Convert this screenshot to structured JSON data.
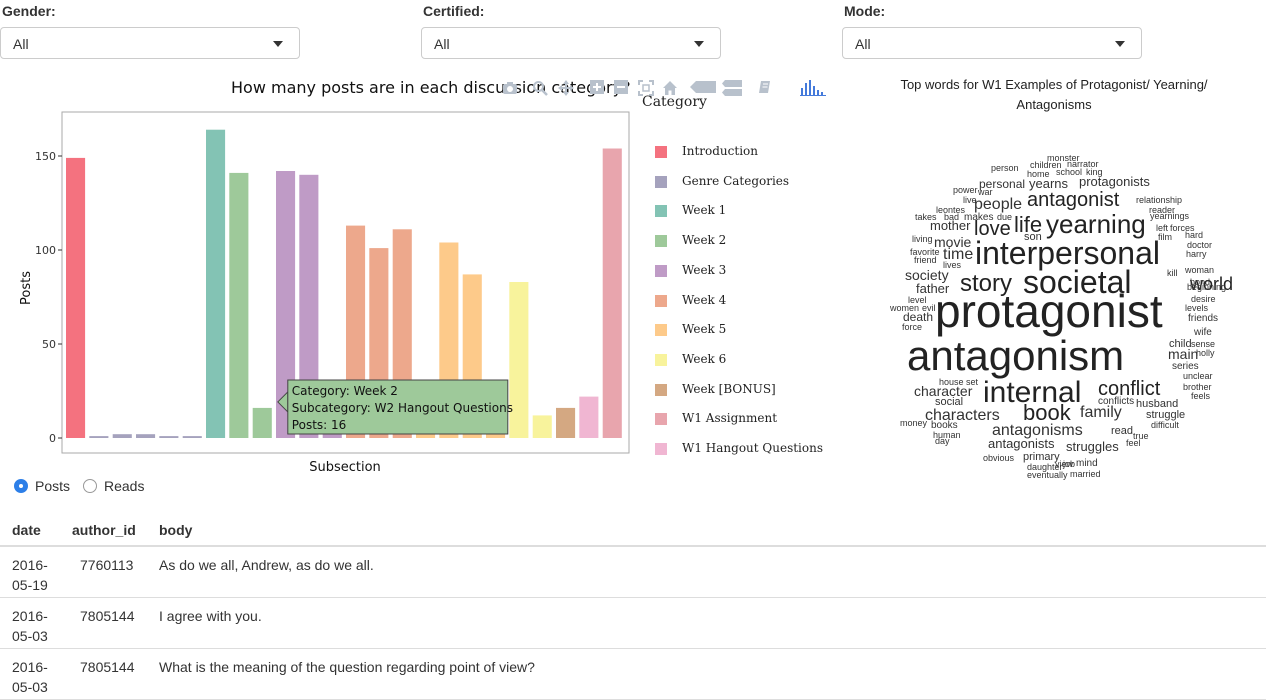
{
  "filters": [
    {
      "label": "Gender:",
      "value": "All"
    },
    {
      "label": "Certified:",
      "value": "All"
    },
    {
      "label": "Mode:",
      "value": "All"
    }
  ],
  "chart": {
    "title": "How many posts are in each discussion category?",
    "xlabel": "Subsection",
    "ylabel": "Posts"
  },
  "chart_data": {
    "type": "bar",
    "title": "How many posts are in each discussion category?",
    "xlabel": "Subsection",
    "ylabel": "Posts",
    "ylim": [
      0,
      165
    ],
    "yticks": [
      0,
      50,
      100,
      150
    ],
    "grid": false,
    "legend_title": "Category",
    "legend_position": "right",
    "categories": [
      "Introduction",
      "Genre Categories",
      "Week 1",
      "Week 2",
      "Week 3",
      "Week 4",
      "Week 5",
      "Week 6",
      "Week [BONUS]",
      "W1 Assignment",
      "W1 Hangout Questions"
    ],
    "colors": [
      "#f4727f",
      "#a5a2bd",
      "#83c3b4",
      "#9ec99a",
      "#bf9bc6",
      "#eda88c",
      "#fdca8a",
      "#f8f39c",
      "#d4a882",
      "#e8a5ad",
      "#f0b6d2"
    ],
    "bars": [
      {
        "category": "Introduction",
        "value": 149
      },
      {
        "category": "Genre Categories",
        "value": 1
      },
      {
        "category": "Genre Categories",
        "value": 2
      },
      {
        "category": "Genre Categories",
        "value": 2
      },
      {
        "category": "Genre Categories",
        "value": 1
      },
      {
        "category": "Genre Categories",
        "value": 1
      },
      {
        "category": "Week 1",
        "value": 164
      },
      {
        "category": "Week 2",
        "value": 141
      },
      {
        "category": "Week 2",
        "value": 16
      },
      {
        "category": "Week 3",
        "value": 142
      },
      {
        "category": "Week 3",
        "value": 140
      },
      {
        "category": "Week 3",
        "value": 10
      },
      {
        "category": "Week 4",
        "value": 113
      },
      {
        "category": "Week 4",
        "value": 101
      },
      {
        "category": "Week 4",
        "value": 111
      },
      {
        "category": "Week 5",
        "value": 10
      },
      {
        "category": "Week 5",
        "value": 104
      },
      {
        "category": "Week 5",
        "value": 87
      },
      {
        "category": "Week 5",
        "value": 12
      },
      {
        "category": "Week 6",
        "value": 83
      },
      {
        "category": "Week 6",
        "value": 12
      },
      {
        "category": "Week [BONUS]",
        "value": 16
      },
      {
        "category": "W1 Hangout Questions",
        "value": 22
      },
      {
        "category": "W1 Assignment",
        "value": 154
      }
    ]
  },
  "tooltip": {
    "lines": [
      "Category: Week 2",
      "Subcategory: W2 Hangout Questions",
      "Posts: 16"
    ],
    "bar_index": 8,
    "color": "#9ec99a"
  },
  "legend": {
    "title": "Category",
    "items": [
      {
        "label": "Introduction",
        "color": "#f4727f"
      },
      {
        "label": "Genre Categories",
        "color": "#a5a2bd"
      },
      {
        "label": "Week 1",
        "color": "#83c3b4"
      },
      {
        "label": "Week 2",
        "color": "#9ec99a"
      },
      {
        "label": "Week 3",
        "color": "#bf9bc6"
      },
      {
        "label": "Week 4",
        "color": "#eda88c"
      },
      {
        "label": "Week 5",
        "color": "#fdca8a"
      },
      {
        "label": "Week 6",
        "color": "#f8f39c"
      },
      {
        "label": "Week [BONUS]",
        "color": "#d4a882"
      },
      {
        "label": "W1 Assignment",
        "color": "#e8a5ad"
      },
      {
        "label": "W1 Hangout Questions",
        "color": "#f0b6d2"
      }
    ]
  },
  "modebar": {
    "icons": [
      "camera-icon",
      "zoom-icon",
      "pan-icon",
      "zoom-in-icon",
      "zoom-out-icon",
      "autoscale-icon",
      "reset-axes-icon",
      "hover-closest-icon",
      "hover-compare-icon",
      "toggle-spikelines-icon",
      "plotly-logo-icon"
    ]
  },
  "wordcloud": {
    "title": "Top words for W1 Examples of Protagonist/ Yearning/ Antagonisms",
    "words": [
      {
        "text": "monster",
        "size": 9
      },
      {
        "text": "person",
        "size": 9
      },
      {
        "text": "children",
        "size": 9
      },
      {
        "text": "narrator",
        "size": 9
      },
      {
        "text": "home",
        "size": 9
      },
      {
        "text": "school",
        "size": 9
      },
      {
        "text": "king",
        "size": 9
      },
      {
        "text": "personal",
        "size": 12
      },
      {
        "text": "yearns",
        "size": 13
      },
      {
        "text": "protagonists",
        "size": 13
      },
      {
        "text": "power",
        "size": 9
      },
      {
        "text": "war",
        "size": 9
      },
      {
        "text": "live",
        "size": 9
      },
      {
        "text": "people",
        "size": 16
      },
      {
        "text": "antagonist",
        "size": 20
      },
      {
        "text": "relationship",
        "size": 9
      },
      {
        "text": "leontes",
        "size": 9
      },
      {
        "text": "reader",
        "size": 9
      },
      {
        "text": "takes",
        "size": 9
      },
      {
        "text": "bad",
        "size": 9
      },
      {
        "text": "makes",
        "size": 10
      },
      {
        "text": "due",
        "size": 9
      },
      {
        "text": "life",
        "size": 22
      },
      {
        "text": "yearning",
        "size": 26
      },
      {
        "text": "yearnings",
        "size": 9
      },
      {
        "text": "mother",
        "size": 13
      },
      {
        "text": "love",
        "size": 20
      },
      {
        "text": "left",
        "size": 9
      },
      {
        "text": "forces",
        "size": 9
      },
      {
        "text": "hard",
        "size": 9
      },
      {
        "text": "son",
        "size": 11
      },
      {
        "text": "film",
        "size": 9
      },
      {
        "text": "living",
        "size": 9
      },
      {
        "text": "movie",
        "size": 14
      },
      {
        "text": "interpersonal",
        "size": 32
      },
      {
        "text": "doctor",
        "size": 9
      },
      {
        "text": "favorite",
        "size": 9
      },
      {
        "text": "time",
        "size": 16
      },
      {
        "text": "harry",
        "size": 9
      },
      {
        "text": "friend",
        "size": 9
      },
      {
        "text": "lives",
        "size": 9
      },
      {
        "text": "society",
        "size": 14
      },
      {
        "text": "story",
        "size": 24
      },
      {
        "text": "societal",
        "size": 32
      },
      {
        "text": "kill",
        "size": 9
      },
      {
        "text": "woman",
        "size": 9
      },
      {
        "text": "world",
        "size": 18
      },
      {
        "text": "bond",
        "size": 9
      },
      {
        "text": "father",
        "size": 13
      },
      {
        "text": "beginning",
        "size": 9
      },
      {
        "text": "level",
        "size": 9
      },
      {
        "text": "desire",
        "size": 9
      },
      {
        "text": "women",
        "size": 9
      },
      {
        "text": "evil",
        "size": 9
      },
      {
        "text": "protagonist",
        "size": 46
      },
      {
        "text": "levels",
        "size": 9
      },
      {
        "text": "death",
        "size": 12
      },
      {
        "text": "friends",
        "size": 10
      },
      {
        "text": "force",
        "size": 9
      },
      {
        "text": "wife",
        "size": 10
      },
      {
        "text": "antagonism",
        "size": 42
      },
      {
        "text": "child",
        "size": 11
      },
      {
        "text": "sense",
        "size": 9
      },
      {
        "text": "main",
        "size": 14
      },
      {
        "text": "holly",
        "size": 9
      },
      {
        "text": "series",
        "size": 10
      },
      {
        "text": "unclear",
        "size": 9
      },
      {
        "text": "house",
        "size": 9
      },
      {
        "text": "set",
        "size": 9
      },
      {
        "text": "brother",
        "size": 9
      },
      {
        "text": "internal",
        "size": 30
      },
      {
        "text": "conflict",
        "size": 20
      },
      {
        "text": "character",
        "size": 14
      },
      {
        "text": "feels",
        "size": 9
      },
      {
        "text": "social",
        "size": 11
      },
      {
        "text": "conflicts",
        "size": 10
      },
      {
        "text": "husband",
        "size": 11
      },
      {
        "text": "characters",
        "size": 16
      },
      {
        "text": "book",
        "size": 22
      },
      {
        "text": "family",
        "size": 16
      },
      {
        "text": "struggle",
        "size": 11
      },
      {
        "text": "money",
        "size": 9
      },
      {
        "text": "books",
        "size": 10
      },
      {
        "text": "difficult",
        "size": 9
      },
      {
        "text": "antagonisms",
        "size": 16
      },
      {
        "text": "read",
        "size": 11
      },
      {
        "text": "human",
        "size": 9
      },
      {
        "text": "true",
        "size": 9
      },
      {
        "text": "day",
        "size": 9
      },
      {
        "text": "antagonists",
        "size": 13
      },
      {
        "text": "struggles",
        "size": 13
      },
      {
        "text": "feel",
        "size": 9
      },
      {
        "text": "obvious",
        "size": 9
      },
      {
        "text": "primary",
        "size": 11
      },
      {
        "text": "daughter",
        "size": 9
      },
      {
        "text": "view",
        "size": 9
      },
      {
        "text": "job",
        "size": 9
      },
      {
        "text": "mind",
        "size": 10
      },
      {
        "text": "eventually",
        "size": 9
      },
      {
        "text": "married",
        "size": 9
      }
    ]
  },
  "radio": {
    "options": [
      {
        "label": "Posts",
        "checked": true
      },
      {
        "label": "Reads",
        "checked": false
      }
    ]
  },
  "table": {
    "headers": [
      "date",
      "author_id",
      "body"
    ],
    "rows": [
      {
        "date": "2016-05-19",
        "author_id": "7760113",
        "body": "As do we all, Andrew, as do we all."
      },
      {
        "date": "2016-05-03",
        "author_id": "7805144",
        "body": "I agree with you."
      },
      {
        "date": "2016-05-03",
        "author_id": "7805144",
        "body": "What is the meaning of the question regarding point of view?"
      }
    ]
  }
}
